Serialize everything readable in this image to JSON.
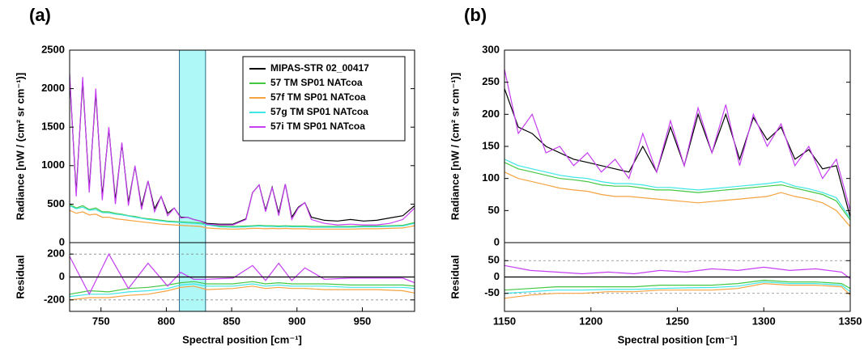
{
  "chart_data": [
    {
      "type": "line",
      "panel_label": "(a)",
      "ylabel": "Radiance [nW / (cm² sr cm⁻¹)]",
      "x": [
        726,
        731,
        736,
        741,
        746,
        751,
        756,
        761,
        766,
        771,
        776,
        781,
        786,
        791,
        796,
        801,
        806,
        811,
        816,
        821,
        826,
        831,
        841,
        851,
        861,
        866,
        871,
        876,
        881,
        886,
        891,
        896,
        901,
        906,
        911,
        921,
        931,
        941,
        951,
        961,
        971,
        981,
        990
      ],
      "xlim": [
        726,
        990
      ],
      "ylim": [
        0,
        2500
      ],
      "yticks": [
        0,
        500,
        1000,
        1500,
        2000,
        2500
      ],
      "highlight": [
        810,
        830
      ],
      "legend": "upper right",
      "series": [
        {
          "name": "MIPAS-STR 02_00417",
          "color": "#000000",
          "values": [
            2150,
            650,
            2100,
            700,
            1950,
            600,
            1480,
            550,
            1280,
            520,
            990,
            470,
            800,
            440,
            600,
            380,
            450,
            330,
            330,
            300,
            280,
            250,
            240,
            240,
            310,
            650,
            750,
            420,
            720,
            380,
            760,
            330,
            460,
            520,
            330,
            290,
            280,
            300,
            280,
            290,
            320,
            350,
            480
          ]
        },
        {
          "name": "57 TM SP01 NATcoa",
          "color": "#44c844",
          "values": [
            500,
            450,
            480,
            430,
            450,
            400,
            400,
            380,
            370,
            350,
            340,
            320,
            310,
            300,
            290,
            280,
            275,
            270,
            265,
            260,
            255,
            240,
            215,
            210,
            215,
            220,
            225,
            220,
            220,
            215,
            220,
            215,
            215,
            215,
            210,
            210,
            210,
            210,
            215,
            215,
            220,
            225,
            260
          ]
        },
        {
          "name": "57f TM SP01 NATcoa",
          "color": "#f4a340",
          "values": [
            420,
            380,
            400,
            360,
            370,
            330,
            330,
            310,
            300,
            290,
            280,
            270,
            260,
            250,
            240,
            235,
            230,
            225,
            220,
            215,
            210,
            190,
            180,
            175,
            180,
            185,
            185,
            180,
            185,
            180,
            185,
            180,
            180,
            180,
            175,
            175,
            175,
            175,
            180,
            180,
            185,
            190,
            220
          ]
        },
        {
          "name": "57g TM SP01 NATcoa",
          "color": "#3ee6e6",
          "values": [
            480,
            440,
            460,
            420,
            430,
            390,
            385,
            370,
            360,
            345,
            330,
            315,
            300,
            290,
            280,
            270,
            265,
            260,
            255,
            250,
            245,
            230,
            205,
            200,
            205,
            210,
            215,
            210,
            210,
            205,
            210,
            205,
            205,
            205,
            200,
            200,
            200,
            200,
            205,
            205,
            210,
            215,
            250
          ]
        },
        {
          "name": "57i TM SP01 NATcoa",
          "color": "#c63ff2",
          "values": [
            2200,
            600,
            2150,
            650,
            2000,
            550,
            1500,
            500,
            1300,
            480,
            1000,
            430,
            800,
            400,
            600,
            350,
            450,
            320,
            330,
            300,
            280,
            240,
            230,
            230,
            300,
            650,
            750,
            400,
            720,
            350,
            760,
            300,
            450,
            520,
            300,
            250,
            230,
            240,
            230,
            230,
            250,
            300,
            450
          ]
        }
      ]
    },
    {
      "type": "line",
      "xlabel": "Spectral position [cm⁻¹]",
      "ylabel": "Residual",
      "x": [
        726,
        741,
        756,
        771,
        786,
        801,
        811,
        821,
        831,
        851,
        866,
        876,
        886,
        896,
        906,
        921,
        941,
        961,
        981,
        990
      ],
      "xlim": [
        726,
        990
      ],
      "xticks": [
        750,
        800,
        850,
        900,
        950
      ],
      "ylim": [
        -300,
        300
      ],
      "yticks": [
        -200,
        0,
        200
      ],
      "highlight": [
        810,
        830
      ],
      "dashed_lines": [
        -200,
        200
      ],
      "series": [
        {
          "color": "#44c844",
          "values": [
            -150,
            -120,
            -130,
            -100,
            -90,
            -70,
            -50,
            -40,
            -60,
            -60,
            -40,
            -60,
            -50,
            -60,
            -60,
            -60,
            -70,
            -70,
            -70,
            -80
          ]
        },
        {
          "color": "#f4a340",
          "values": [
            -200,
            -180,
            -180,
            -160,
            -150,
            -120,
            -90,
            -80,
            -110,
            -100,
            -80,
            -100,
            -90,
            -100,
            -100,
            -110,
            -110,
            -110,
            -120,
            -140
          ]
        },
        {
          "color": "#3ee6e6",
          "values": [
            -170,
            -150,
            -150,
            -130,
            -120,
            -100,
            -70,
            -60,
            -80,
            -80,
            -60,
            -80,
            -70,
            -80,
            -80,
            -80,
            -90,
            -90,
            -90,
            -100
          ]
        },
        {
          "color": "#c63ff2",
          "values": [
            180,
            -150,
            200,
            -100,
            120,
            -80,
            40,
            -20,
            -20,
            -10,
            100,
            -30,
            120,
            -30,
            80,
            -20,
            -10,
            -10,
            -10,
            -50
          ]
        }
      ]
    },
    {
      "type": "line",
      "panel_label": "(b)",
      "ylabel": "Radiance [nW / (cm² sr cm⁻¹)]",
      "x": [
        1150,
        1158,
        1166,
        1174,
        1182,
        1190,
        1198,
        1206,
        1214,
        1222,
        1230,
        1238,
        1246,
        1254,
        1262,
        1270,
        1278,
        1286,
        1294,
        1302,
        1310,
        1318,
        1326,
        1334,
        1342,
        1350
      ],
      "xlim": [
        1150,
        1350
      ],
      "ylim": [
        0,
        300
      ],
      "yticks": [
        0,
        50,
        100,
        150,
        200,
        250,
        300
      ],
      "series": [
        {
          "color": "#000000",
          "values": [
            240,
            180,
            170,
            150,
            140,
            130,
            125,
            120,
            115,
            110,
            150,
            110,
            180,
            120,
            200,
            140,
            200,
            130,
            195,
            160,
            180,
            130,
            145,
            115,
            120,
            40
          ]
        },
        {
          "color": "#44c844",
          "values": [
            125,
            115,
            110,
            105,
            100,
            98,
            95,
            90,
            88,
            88,
            85,
            82,
            82,
            80,
            78,
            80,
            82,
            84,
            86,
            88,
            90,
            85,
            80,
            75,
            65,
            35
          ]
        },
        {
          "color": "#f4a340",
          "values": [
            110,
            100,
            95,
            90,
            85,
            82,
            80,
            75,
            72,
            72,
            70,
            68,
            66,
            64,
            62,
            64,
            66,
            68,
            70,
            72,
            78,
            72,
            68,
            62,
            50,
            25
          ]
        },
        {
          "color": "#3ee6e6",
          "values": [
            130,
            120,
            115,
            110,
            105,
            102,
            100,
            95,
            92,
            92,
            90,
            86,
            86,
            84,
            82,
            84,
            86,
            88,
            90,
            92,
            95,
            88,
            84,
            78,
            70,
            38
          ]
        },
        {
          "color": "#c63ff2",
          "values": [
            270,
            170,
            200,
            140,
            150,
            120,
            140,
            110,
            130,
            100,
            170,
            110,
            190,
            120,
            210,
            140,
            215,
            120,
            200,
            150,
            185,
            120,
            150,
            100,
            130,
            50
          ]
        }
      ]
    },
    {
      "type": "line",
      "xlabel": "Spectral position [cm⁻¹]",
      "ylabel": "Residual",
      "x": [
        1150,
        1165,
        1180,
        1195,
        1210,
        1225,
        1240,
        1255,
        1270,
        1285,
        1300,
        1315,
        1330,
        1345,
        1350
      ],
      "xlim": [
        1150,
        1350
      ],
      "xticks": [
        1150,
        1200,
        1250,
        1300,
        1350
      ],
      "ylim": [
        -105,
        105
      ],
      "yticks": [
        -50,
        0,
        50
      ],
      "dashed_lines": [
        -50,
        50
      ],
      "series": [
        {
          "color": "#44c844",
          "values": [
            -40,
            -35,
            -30,
            -30,
            -30,
            -30,
            -25,
            -25,
            -25,
            -20,
            -10,
            -15,
            -15,
            -20,
            -35
          ]
        },
        {
          "color": "#f4a340",
          "values": [
            -65,
            -55,
            -50,
            -50,
            -45,
            -45,
            -40,
            -40,
            -40,
            -35,
            -20,
            -25,
            -25,
            -30,
            -55
          ]
        },
        {
          "color": "#3ee6e6",
          "values": [
            -50,
            -45,
            -40,
            -40,
            -38,
            -38,
            -35,
            -33,
            -32,
            -28,
            -15,
            -20,
            -20,
            -25,
            -45
          ]
        },
        {
          "color": "#c63ff2",
          "values": [
            35,
            20,
            15,
            10,
            15,
            10,
            20,
            15,
            25,
            20,
            30,
            20,
            25,
            15,
            -5
          ]
        }
      ]
    }
  ]
}
